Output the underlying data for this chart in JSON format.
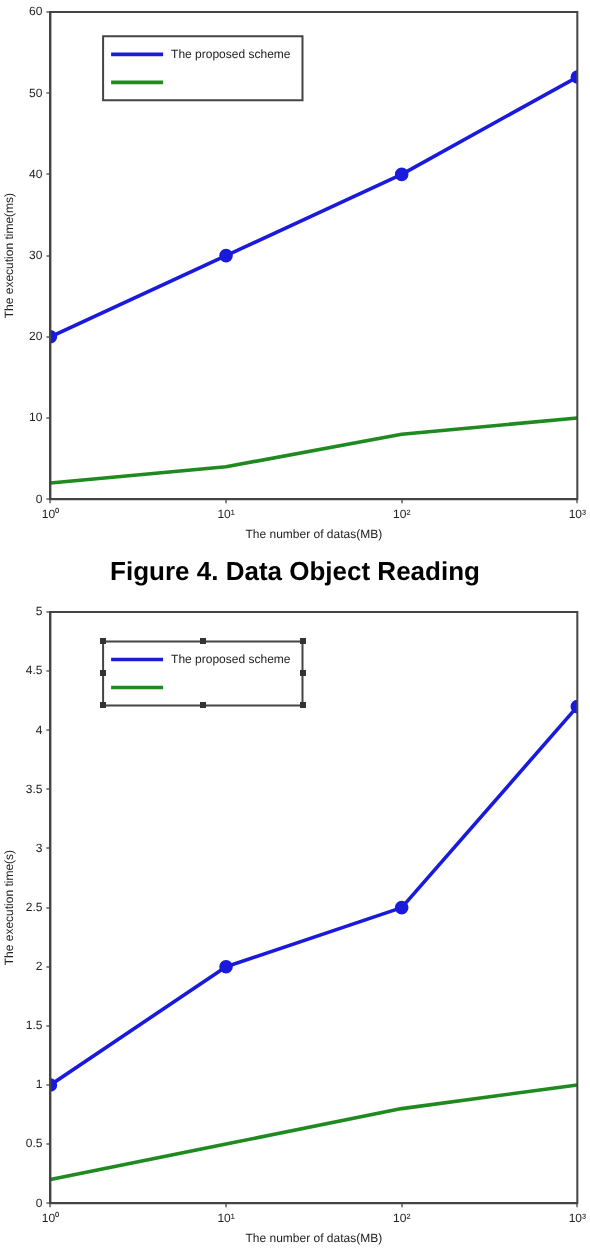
{
  "chart_data": [
    {
      "type": "line",
      "xlabel": "The number of datas(MB)",
      "ylabel": "The execution time(ms)",
      "x": [
        1,
        10,
        100,
        1000
      ],
      "log": "x",
      "xlim": [
        1,
        1000
      ],
      "xticks": [
        {
          "value": 1,
          "label": "10⁰"
        },
        {
          "value": 10,
          "label": "10¹"
        },
        {
          "value": 100,
          "label": "10²"
        },
        {
          "value": 1000,
          "label": "10³"
        }
      ],
      "ylim": [
        0,
        60
      ],
      "yticks": [
        0,
        10,
        20,
        30,
        40,
        50,
        60
      ],
      "grid": false,
      "legend": "top left",
      "line_style": "solid",
      "annotations": [
        "Figure 4. Data Object Reading"
      ],
      "series": [
        {
          "name": "The proposed scheme",
          "color": "#1a1adc",
          "marker": "circle",
          "values": [
            20,
            30,
            40,
            52
          ]
        },
        {
          "color": "#1f8a1f",
          "marker": "none",
          "values": [
            2,
            4,
            8,
            10
          ]
        }
      ]
    },
    {
      "type": "line",
      "xlabel": "The number of datas(MB)",
      "ylabel": "The execution time(s)",
      "x": [
        1,
        10,
        100,
        1000
      ],
      "log": "x",
      "xlim": [
        1,
        1000
      ],
      "xticks": [
        {
          "value": 1,
          "label": "10⁰"
        },
        {
          "value": 10,
          "label": "10¹"
        },
        {
          "value": 100,
          "label": "10²"
        },
        {
          "value": 1000,
          "label": "10³"
        }
      ],
      "ylim": [
        0,
        5
      ],
      "yticks": [
        0,
        0.5,
        1,
        1.5,
        2,
        2.5,
        3,
        3.5,
        4,
        4.5,
        5
      ],
      "grid": false,
      "legend": "top left",
      "line_style": "solid",
      "series": [
        {
          "name": "The proposed scheme",
          "color": "#1a1adc",
          "marker": "circle",
          "values": [
            1,
            2,
            2.5,
            4.2
          ]
        },
        {
          "color": "#1f8a1f",
          "marker": "none",
          "values": [
            0.2,
            0.5,
            0.8,
            1
          ]
        }
      ]
    }
  ]
}
